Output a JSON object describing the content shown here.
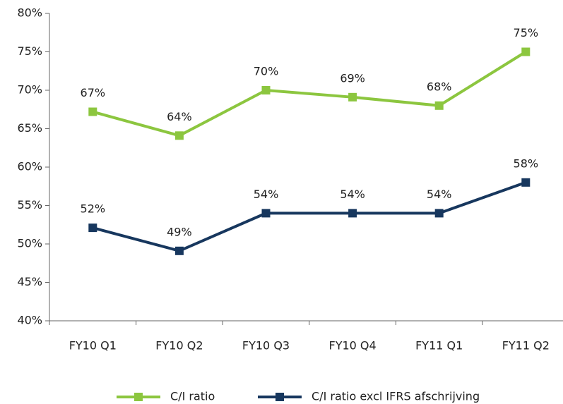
{
  "chart_data": {
    "type": "line",
    "categories": [
      "FY10 Q1",
      "FY10 Q2",
      "FY10 Q3",
      "FY10 Q4",
      "FY11 Q1",
      "FY11 Q2"
    ],
    "series": [
      {
        "name": "C/I ratio",
        "color": "#8cc63f",
        "values": [
          67.2,
          64.1,
          70,
          69.1,
          68,
          75
        ],
        "value_labels": [
          "67%",
          "64%",
          "70%",
          "69%",
          "68%",
          "75%"
        ]
      },
      {
        "name": "C/I ratio excl IFRS afschrijving",
        "color": "#17375e",
        "values": [
          52.1,
          49.1,
          54,
          54,
          54,
          58
        ],
        "value_labels": [
          "52%",
          "49%",
          "54%",
          "54%",
          "54%",
          "58%"
        ]
      }
    ],
    "ylim": [
      40,
      80
    ],
    "yticks": [
      {
        "value": 40,
        "label": "40%"
      },
      {
        "value": 45,
        "label": "45%"
      },
      {
        "value": 50,
        "label": "50%"
      },
      {
        "value": 55,
        "label": "55%"
      },
      {
        "value": 60,
        "label": "60%"
      },
      {
        "value": 65,
        "label": "65%"
      },
      {
        "value": 70,
        "label": "70%"
      },
      {
        "value": 75,
        "label": "75%"
      },
      {
        "value": 80,
        "label": "80%"
      }
    ],
    "legend": "bottom"
  }
}
